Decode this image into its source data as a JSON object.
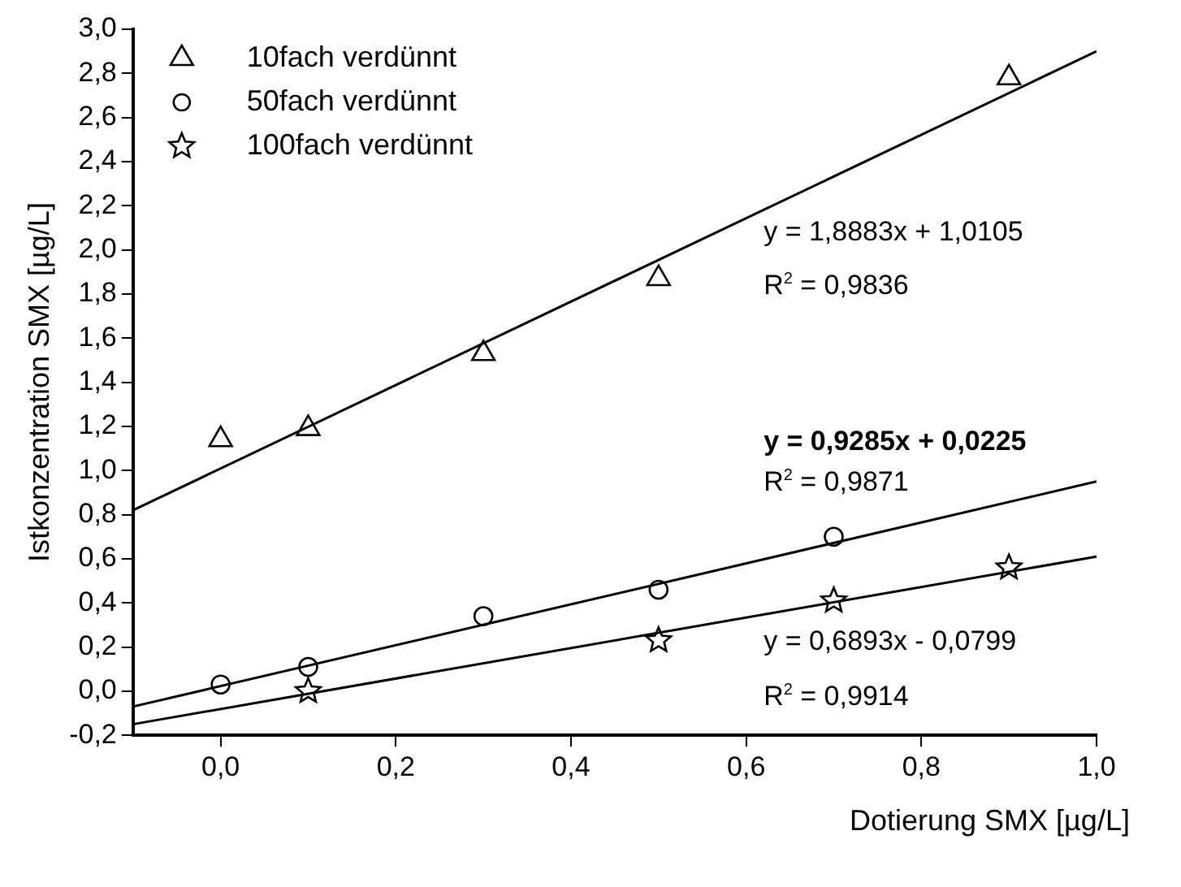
{
  "chart_data": {
    "type": "scatter",
    "xlabel": "Dotierung SMX [µg/L]",
    "ylabel": "Istkonzentration SMX [µg/L]",
    "xlim": [
      -0.1,
      1.0
    ],
    "xticks": [
      {
        "value": 0,
        "label": "0,0"
      },
      {
        "value": 0.2,
        "label": "0,2"
      },
      {
        "value": 0.4,
        "label": "0,4"
      },
      {
        "value": 0.6,
        "label": "0,6"
      },
      {
        "value": 0.8,
        "label": "0,8"
      },
      {
        "value": 1.0,
        "label": "1,0"
      }
    ],
    "ylim": [
      -0.2,
      3.0
    ],
    "yticks": [
      {
        "value": -0.2,
        "label": "-0,2"
      },
      {
        "value": 0,
        "label": "0,0"
      },
      {
        "value": 0.2,
        "label": "0,2"
      },
      {
        "value": 0.4,
        "label": "0,4"
      },
      {
        "value": 0.6,
        "label": "0,6"
      },
      {
        "value": 0.8,
        "label": "0,8"
      },
      {
        "value": 1.0,
        "label": "1,0"
      },
      {
        "value": 1.2,
        "label": "1,2"
      },
      {
        "value": 1.4,
        "label": "1,4"
      },
      {
        "value": 1.6,
        "label": "1,6"
      },
      {
        "value": 1.8,
        "label": "1,8"
      },
      {
        "value": 2.0,
        "label": "2,0"
      },
      {
        "value": 2.2,
        "label": "2,2"
      },
      {
        "value": 2.4,
        "label": "2,4"
      },
      {
        "value": 2.6,
        "label": "2,6"
      },
      {
        "value": 2.8,
        "label": "2,8"
      },
      {
        "value": 3.0,
        "label": "3,0"
      }
    ],
    "grid": false,
    "legend": "top left",
    "series": [
      {
        "name": "10fach verdünnt",
        "color": "#000000",
        "marker": "triangle",
        "x": [
          0,
          0.1,
          0.3,
          0.5,
          0.9
        ],
        "values": [
          1.14,
          1.19,
          1.53,
          1.87,
          2.78
        ]
      },
      {
        "name": "50fach verdünnt",
        "color": "#000000",
        "marker": "circle",
        "x": [
          0,
          0.1,
          0.3,
          0.5,
          0.7
        ],
        "values": [
          0.03,
          0.11,
          0.34,
          0.46,
          0.7
        ]
      },
      {
        "name": "100fach verdünnt",
        "color": "#000000",
        "marker": "star",
        "x": [
          0.1,
          0.5,
          0.7,
          0.9
        ],
        "values": [
          0.0,
          0.23,
          0.41,
          0.56
        ]
      },
      {
        "type": "line",
        "color": "#000000",
        "marker": "none",
        "x": [
          -0.1,
          1.0
        ],
        "values": [
          0.82,
          2.9
        ]
      },
      {
        "type": "line",
        "color": "#000000",
        "marker": "none",
        "x": [
          -0.1,
          1.0
        ],
        "values": [
          -0.07,
          0.95
        ]
      },
      {
        "type": "line",
        "color": "#000000",
        "marker": "none",
        "x": [
          -0.1,
          1.0
        ],
        "values": [
          -0.15,
          0.61
        ]
      }
    ],
    "annotations": [
      "y   = 1,8883x + 1,0105",
      "R$^{2}$ = 0,9836",
      "y   = 0,9285x + 0,0225",
      "R$^{2}$ = 0,9871",
      "y   = 0,6893x - 0,0799",
      "R$^{2}$ = 0,9914"
    ]
  }
}
